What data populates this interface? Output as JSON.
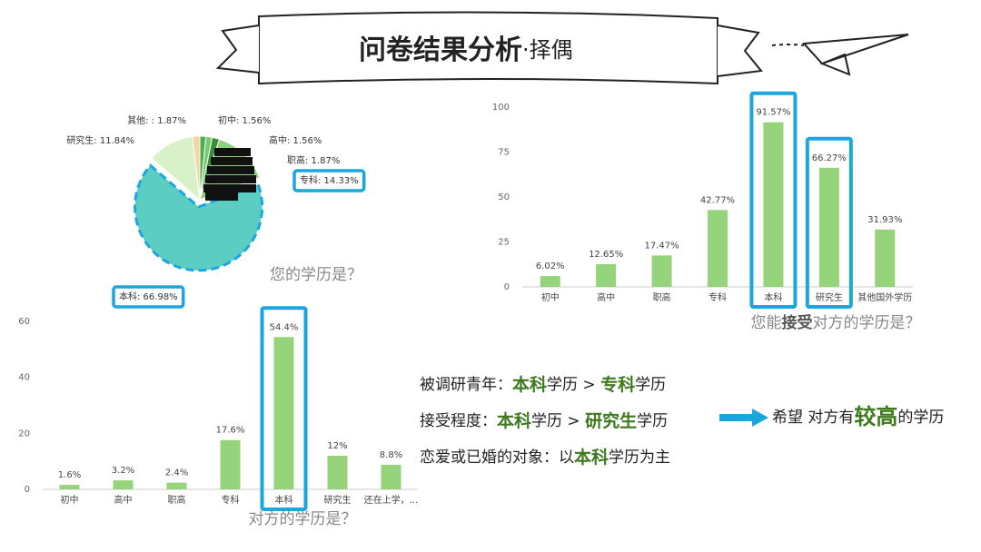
{
  "title": "问卷结果分析",
  "subtitle": "·择偶",
  "chart_data": [
    {
      "type": "pie",
      "title": [
        {
          "text": "您的学历是？"
        }
      ],
      "values": [
        1.56,
        1.56,
        1.87,
        14.33,
        66.98,
        11.84,
        1.87
      ],
      "value_labels": [
        "初中: 1.56%",
        "高中: 1.56%",
        "职高: 1.87%",
        "专科: 14.33%",
        "本科: 66.98%",
        "研究生: 11.84%",
        "其他: : 1.87%"
      ],
      "colors": [
        "#4caf50",
        "#7bc96f",
        "#3a8f3a",
        "#8fd07a",
        "#5ccdc3",
        "#d9f1c8",
        "#f6d4a6"
      ],
      "highlight": [
        3,
        4
      ],
      "explode": [
        4
      ]
    },
    {
      "type": "bar",
      "title": [
        {
          "text": "您能"
        },
        {
          "text": "接受",
          "bold": true
        },
        {
          "text": "对方的学历是？"
        }
      ],
      "categories": [
        "初中",
        "高中",
        "职高",
        "专科",
        "本科",
        "研究生",
        "其他国外学历"
      ],
      "values": [
        6.02,
        12.65,
        17.47,
        42.77,
        91.57,
        66.27,
        31.93
      ],
      "value_labels": [
        "6.02%",
        "12.65%",
        "17.47%",
        "42.77%",
        "91.57%",
        "66.27%",
        "31.93%"
      ],
      "color": "#95d47a",
      "ylim": [
        0,
        100
      ],
      "yticks": [
        0,
        25,
        50,
        75,
        100
      ],
      "highlight": [
        4,
        5
      ]
    },
    {
      "type": "bar",
      "title": [
        {
          "text": "对方的学历是？"
        }
      ],
      "categories": [
        "初中",
        "高中",
        "职高",
        "专科",
        "本科",
        "研究生",
        "还在上学，..."
      ],
      "values": [
        1.6,
        3.2,
        2.4,
        17.6,
        54.4,
        12,
        8.8
      ],
      "value_labels": [
        "1.6%",
        "3.2%",
        "2.4%",
        "17.6%",
        "54.4%",
        "12%",
        "8.8%"
      ],
      "color": "#95d47a",
      "ylim": [
        0,
        60
      ],
      "yticks": [
        0,
        20,
        40,
        60
      ],
      "highlight": [
        4
      ]
    }
  ],
  "summary": [
    [
      {
        "text": "被调研青年："
      },
      {
        "text": "本科",
        "bold": true
      },
      {
        "text": "学历 > "
      },
      {
        "text": "专科",
        "bold": true
      },
      {
        "text": "学历"
      }
    ],
    [
      {
        "text": "接受程度："
      },
      {
        "text": "本科",
        "bold": true
      },
      {
        "text": "学历 > "
      },
      {
        "text": "研究生",
        "bold": true
      },
      {
        "text": "学历"
      }
    ],
    [
      {
        "text": "恋爱或已婚的对象：以"
      },
      {
        "text": "本科",
        "bold": true
      },
      {
        "text": "学历为主"
      }
    ]
  ],
  "conclusion": [
    {
      "text": "希望 对方有"
    },
    {
      "text": "较高",
      "bold": true
    },
    {
      "text": "的学历"
    }
  ]
}
